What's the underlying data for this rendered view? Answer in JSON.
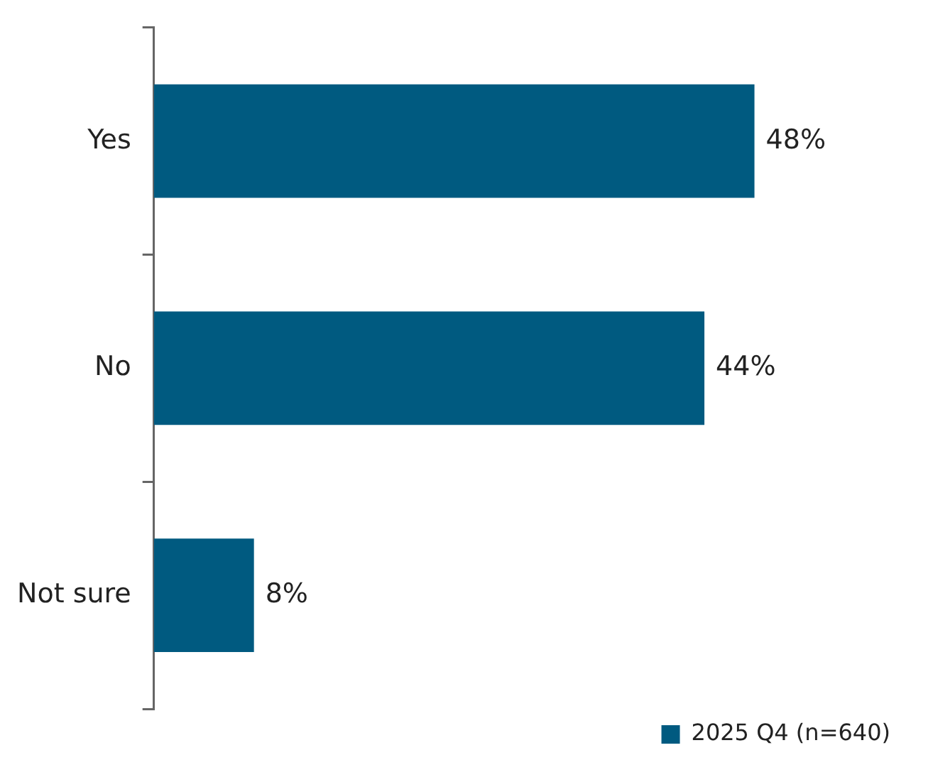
{
  "chart_data": {
    "type": "bar",
    "orientation": "horizontal",
    "categories": [
      "Yes",
      "No",
      "Not sure"
    ],
    "series": [
      {
        "name": "2025 Q4 (n=640)",
        "color": "#005a80",
        "values": [
          48,
          44,
          8
        ],
        "value_labels": [
          "48%",
          "44%",
          "8%"
        ]
      }
    ],
    "legend": "bottom right"
  }
}
